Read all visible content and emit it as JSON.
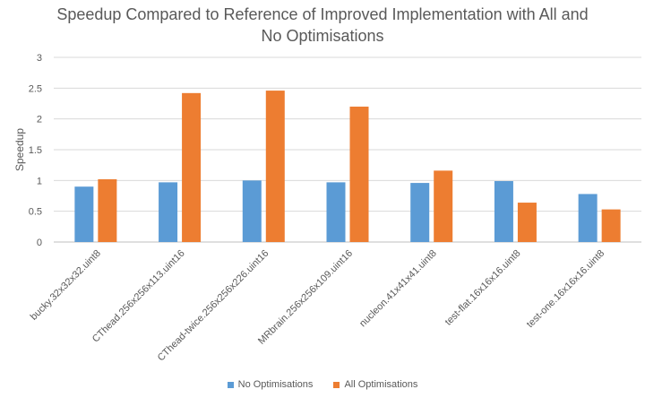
{
  "chart_data": {
    "type": "bar",
    "title_lines": [
      "Speedup Compared to Reference of Improved Implementation with All and",
      "No Optimisations"
    ],
    "xlabel": "",
    "ylabel": "Speedup",
    "ylim": [
      0,
      3
    ],
    "yticks": [
      "0",
      "0.5",
      "1",
      "1.5",
      "2",
      "2.5",
      "3"
    ],
    "grid": true,
    "legend_position": "bottom",
    "categories": [
      "bucky.32x32x32.uint8",
      "CThead.256x256x113.uint16",
      "CThead-twice.256x256x226.uint16",
      "MRbrain.256x256x109.uint16",
      "nucleon.41x41x41.uint8",
      "test-flat.16x16x16.uint8",
      "test-one.16x16x16.uint8"
    ],
    "series": [
      {
        "name": "No Optimisations",
        "color": "#5b9bd5",
        "values": [
          0.9,
          0.97,
          1.0,
          0.97,
          0.96,
          0.99,
          0.78
        ]
      },
      {
        "name": "All Optimisations",
        "color": "#ed7d31",
        "values": [
          1.02,
          2.42,
          2.46,
          2.2,
          1.16,
          0.64,
          0.53
        ]
      }
    ]
  }
}
